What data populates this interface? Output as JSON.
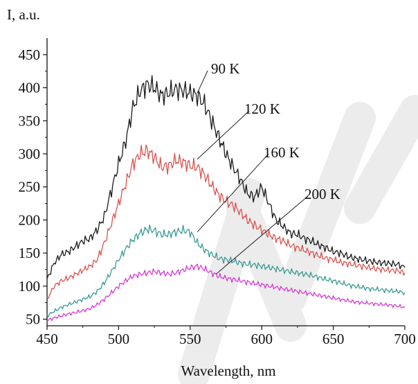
{
  "chart_data": {
    "type": "line",
    "xlabel": "Wavelength, nm",
    "ylabel": "I, a.u.",
    "xlim": [
      450,
      700
    ],
    "ylim": [
      40,
      475
    ],
    "x_ticks": [
      450,
      500,
      550,
      600,
      650,
      700
    ],
    "y_ticks": [
      50,
      100,
      150,
      200,
      250,
      300,
      350,
      400,
      450
    ],
    "grid": false,
    "watermark_colors": [
      "#000000"
    ],
    "series": [
      {
        "name": "90 K",
        "color": "#1a1a1a",
        "x": [
          450,
          455,
          460,
          465,
          470,
          475,
          480,
          485,
          490,
          495,
          500,
          505,
          510,
          515,
          520,
          525,
          530,
          535,
          540,
          545,
          550,
          555,
          560,
          565,
          570,
          575,
          580,
          585,
          590,
          595,
          600,
          605,
          610,
          615,
          620,
          625,
          630,
          635,
          640,
          645,
          650,
          655,
          660,
          665,
          670,
          675,
          680,
          685,
          690,
          695,
          700
        ],
        "values": [
          110,
          135,
          148,
          152,
          160,
          168,
          172,
          185,
          205,
          245,
          285,
          320,
          370,
          395,
          405,
          400,
          388,
          392,
          398,
          396,
          392,
          388,
          375,
          350,
          325,
          300,
          280,
          262,
          240,
          235,
          250,
          225,
          200,
          190,
          180,
          178,
          172,
          168,
          162,
          158,
          152,
          150,
          145,
          142,
          140,
          138,
          136,
          135,
          134,
          133,
          128
        ]
      },
      {
        "name": "120 K",
        "color": "#d9534f",
        "x": [
          450,
          455,
          460,
          465,
          470,
          475,
          480,
          485,
          490,
          495,
          500,
          505,
          510,
          515,
          520,
          525,
          530,
          535,
          540,
          545,
          550,
          555,
          560,
          565,
          570,
          575,
          580,
          585,
          590,
          595,
          600,
          605,
          610,
          615,
          620,
          625,
          630,
          635,
          640,
          645,
          650,
          655,
          660,
          665,
          670,
          675,
          680,
          685,
          690,
          695,
          700
        ],
        "values": [
          80,
          100,
          108,
          112,
          118,
          124,
          130,
          140,
          165,
          195,
          225,
          255,
          285,
          300,
          305,
          295,
          280,
          282,
          290,
          288,
          282,
          280,
          268,
          252,
          238,
          228,
          222,
          212,
          200,
          192,
          185,
          178,
          172,
          168,
          162,
          158,
          154,
          150,
          146,
          142,
          140,
          136,
          134,
          132,
          130,
          128,
          126,
          125,
          124,
          123,
          120
        ]
      },
      {
        "name": "160 K",
        "color": "#3a9a95",
        "x": [
          450,
          455,
          460,
          465,
          470,
          475,
          480,
          485,
          490,
          495,
          500,
          505,
          510,
          515,
          520,
          525,
          530,
          535,
          540,
          545,
          550,
          555,
          560,
          565,
          570,
          575,
          580,
          585,
          590,
          595,
          600,
          605,
          610,
          615,
          620,
          625,
          630,
          635,
          640,
          645,
          650,
          655,
          660,
          665,
          670,
          675,
          680,
          685,
          690,
          695,
          700
        ],
        "values": [
          55,
          62,
          68,
          72,
          76,
          80,
          84,
          92,
          105,
          122,
          140,
          156,
          170,
          180,
          186,
          184,
          178,
          178,
          182,
          184,
          182,
          165,
          155,
          148,
          142,
          140,
          138,
          135,
          133,
          132,
          130,
          128,
          126,
          124,
          122,
          120,
          118,
          116,
          113,
          110,
          108,
          105,
          102,
          100,
          98,
          96,
          95,
          94,
          93,
          92,
          90
        ]
      },
      {
        "name": "200 K",
        "color": "#d63ad6",
        "x": [
          450,
          455,
          460,
          465,
          470,
          475,
          480,
          485,
          490,
          495,
          500,
          505,
          510,
          515,
          520,
          525,
          530,
          535,
          540,
          545,
          550,
          555,
          560,
          565,
          570,
          575,
          580,
          585,
          590,
          595,
          600,
          605,
          610,
          615,
          620,
          625,
          630,
          635,
          640,
          645,
          650,
          655,
          660,
          665,
          670,
          675,
          680,
          685,
          690,
          695,
          700
        ],
        "values": [
          48,
          52,
          55,
          58,
          60,
          63,
          66,
          72,
          80,
          90,
          100,
          108,
          115,
          118,
          120,
          122,
          120,
          118,
          120,
          124,
          128,
          130,
          126,
          120,
          115,
          112,
          110,
          108,
          106,
          104,
          102,
          100,
          98,
          96,
          94,
          92,
          90,
          88,
          86,
          84,
          82,
          80,
          78,
          76,
          75,
          74,
          73,
          72,
          71,
          70,
          68
        ]
      }
    ],
    "annotations": [
      {
        "text": "90 K",
        "series": "90 K",
        "x": 555,
        "y": 392
      },
      {
        "text": "120 K",
        "series": "120 K",
        "x": 555,
        "y": 292
      },
      {
        "text": "160 K",
        "series": "160 K",
        "x": 555,
        "y": 182
      },
      {
        "text": "200 K",
        "series": "200 K",
        "x": 568,
        "y": 118
      }
    ]
  }
}
